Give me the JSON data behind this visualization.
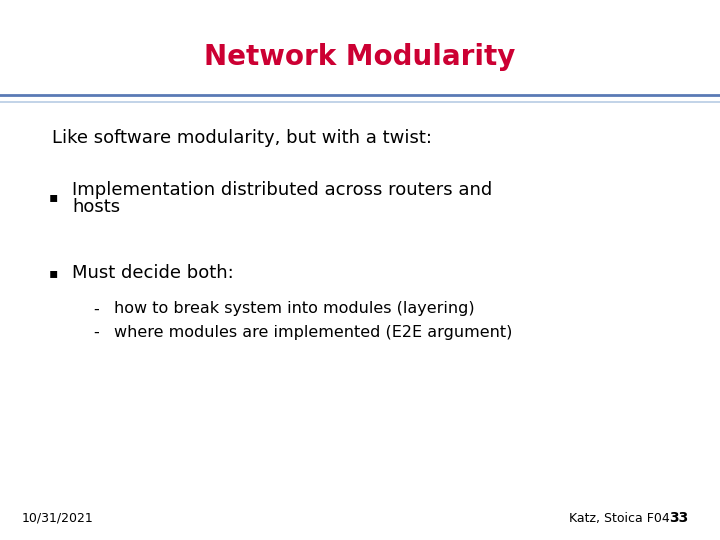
{
  "title": "Network Modularity",
  "title_color": "#CC0033",
  "title_fontsize": 20,
  "title_fontweight": "bold",
  "bg_color": "#FFFFFF",
  "separator_color_top": "#5A7AB5",
  "separator_color_bottom": "#B8CCE4",
  "intro_text": "Like software modularity, but with a twist:",
  "intro_fontsize": 13,
  "bullet1_line1": "Implementation distributed across routers and",
  "bullet1_line2": "hosts",
  "bullet2": "Must decide both:",
  "sub1": "how to break system into modules (layering)",
  "sub2": "where modules are implemented (E2E argument)",
  "bullet_fontsize": 13,
  "sub_fontsize": 11.5,
  "footer_left": "10/31/2021",
  "footer_right": "Katz, Stoica F04",
  "footer_page": "33",
  "footer_fontsize": 9,
  "text_color": "#000000",
  "bullet_symbol": "▪",
  "dash_symbol": "-"
}
